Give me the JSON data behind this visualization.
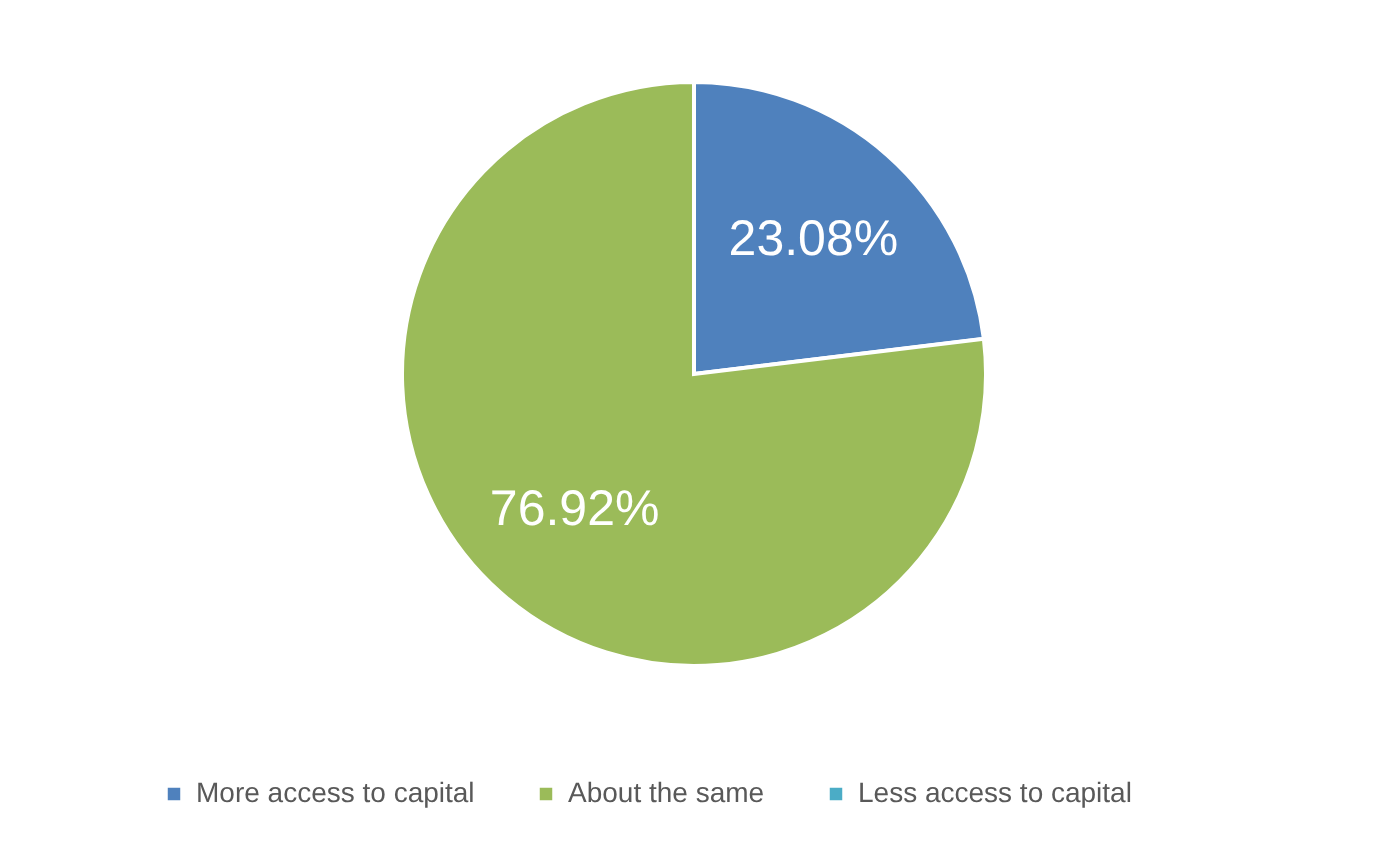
{
  "chart_data": {
    "type": "pie",
    "categories": [
      "More access to capital",
      "About the same",
      "Less access to capital"
    ],
    "values": [
      23.08,
      76.92,
      0
    ],
    "colors": [
      "#4f81bd",
      "#9bbb59",
      "#4bacc6"
    ],
    "value_labels": [
      "23.08%",
      "76.92%",
      null
    ],
    "legend": "bottom"
  }
}
